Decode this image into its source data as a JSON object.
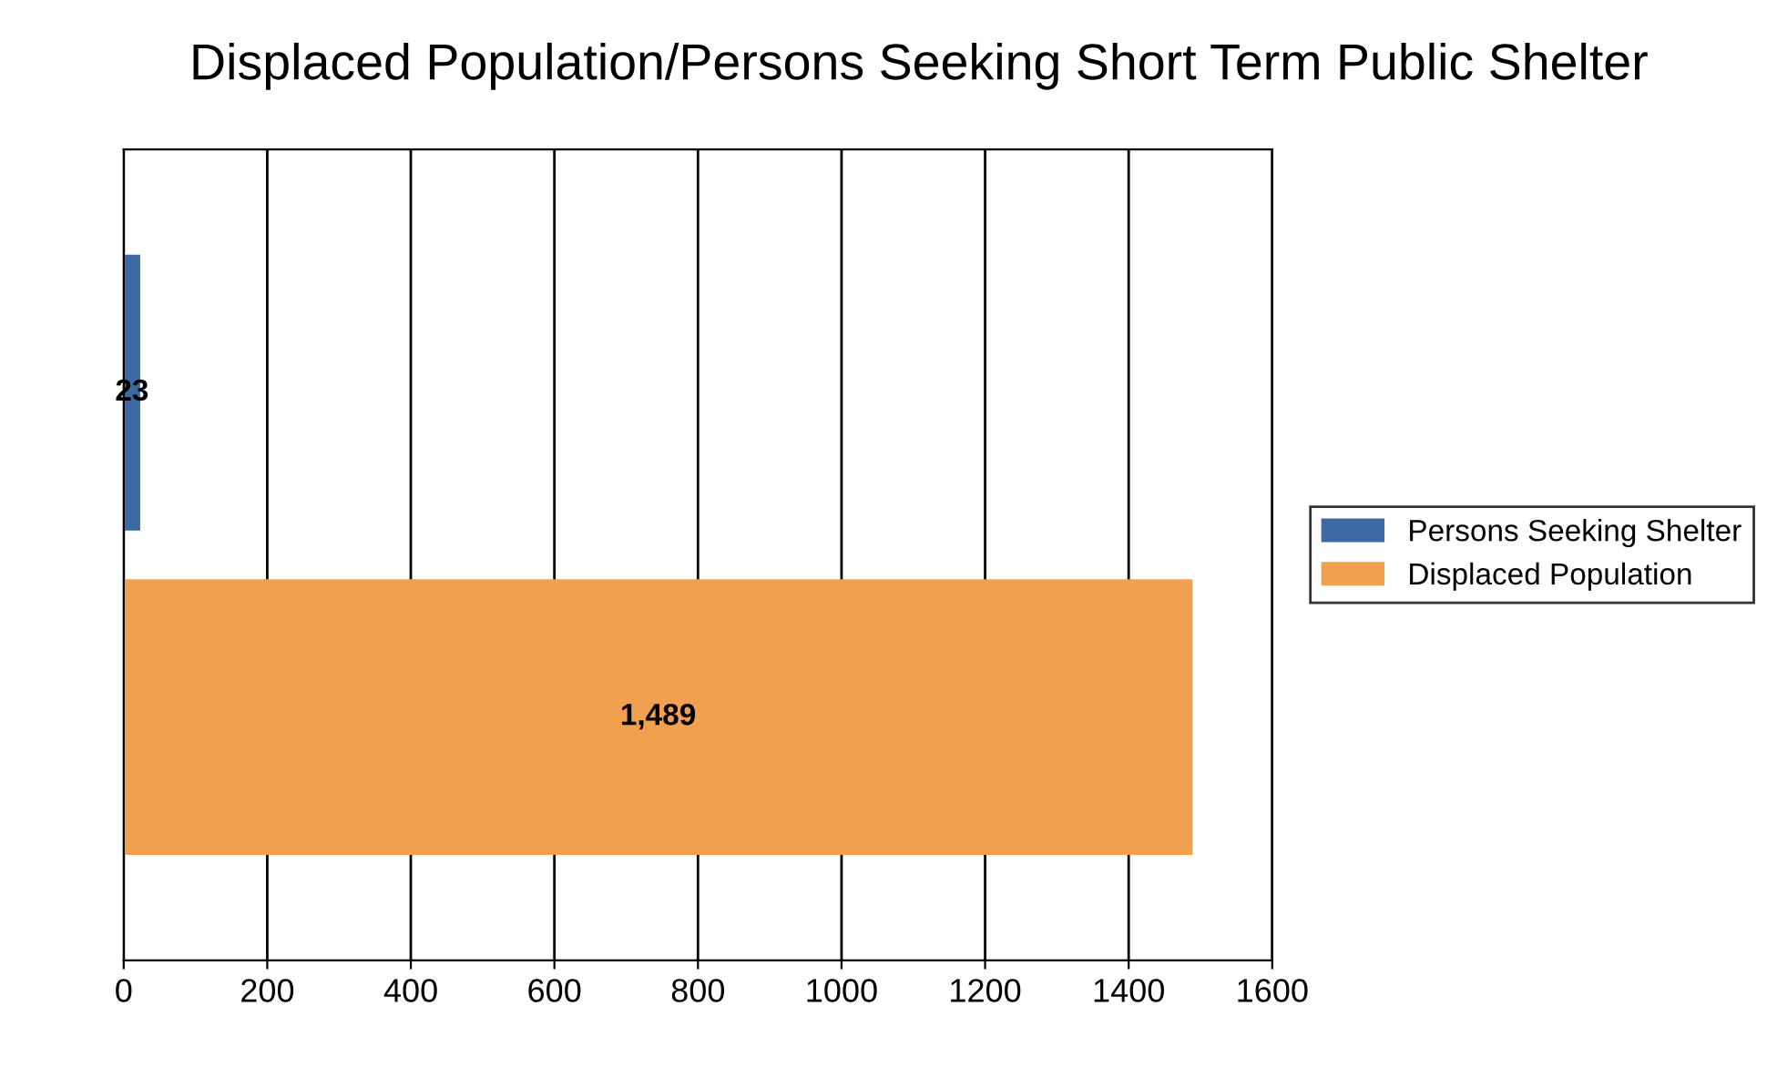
{
  "chart_data": {
    "type": "bar",
    "orientation": "horizontal",
    "title": "Displaced Population/Persons Seeking Short Term Public Shelter",
    "categories": [
      null
    ],
    "series": [
      {
        "name": "Persons Seeking Shelter",
        "color": "#3d6aa2",
        "values": [
          23
        ],
        "value_labels": [
          "23"
        ]
      },
      {
        "name": "Displaced Population",
        "color": "#f0a04e",
        "values": [
          1489
        ],
        "value_labels": [
          "1,489"
        ]
      }
    ],
    "xlim": [
      0,
      1600
    ],
    "xticks": [
      0,
      200,
      400,
      600,
      800,
      1000,
      1200,
      1400,
      1600
    ],
    "grid": "x",
    "legend": "right"
  }
}
